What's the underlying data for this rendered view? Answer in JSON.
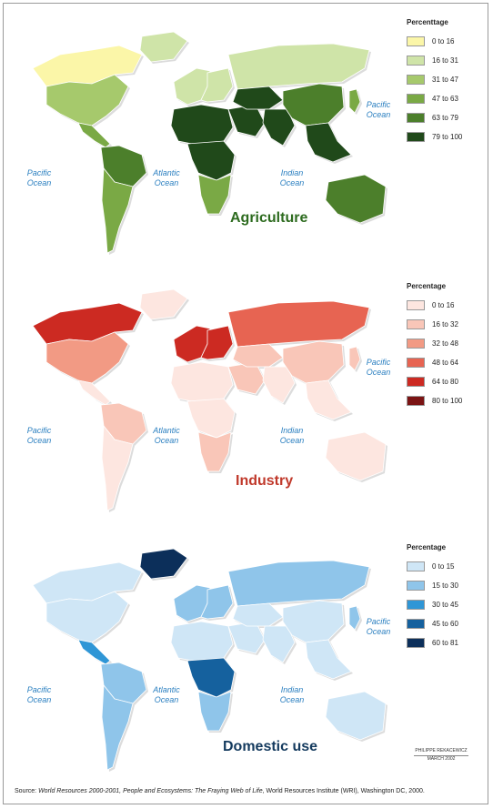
{
  "maps": [
    {
      "id": "agriculture",
      "title": "Agriculture",
      "title_color": "#2d6b1f",
      "legend_title": "Percenttage",
      "legend": [
        {
          "label": "0 to 16",
          "color": "#fbf6a8"
        },
        {
          "label": "16 to 31",
          "color": "#cfe4a8"
        },
        {
          "label": "31 to 47",
          "color": "#a6c96c"
        },
        {
          "label": "47 to 63",
          "color": "#7aa945"
        },
        {
          "label": "63 to 79",
          "color": "#4c7f2b"
        },
        {
          "label": "79 to 100",
          "color": "#20491a"
        }
      ],
      "regions": {
        "north_america_north": 0,
        "north_america_south": 2,
        "greenland": 1,
        "central_america": 3,
        "south_america_north": 4,
        "south_america_south": 3,
        "europe_west": 1,
        "europe_east": 1,
        "russia": 1,
        "north_africa": 5,
        "africa_central": 5,
        "africa_south": 3,
        "middle_east": 5,
        "central_asia": 5,
        "south_asia": 5,
        "china": 4,
        "southeast_asia": 5,
        "australia": 4,
        "japan": 3
      }
    },
    {
      "id": "industry",
      "title": "Industry",
      "title_color": "#c0392b",
      "legend_title": "Percentage",
      "legend": [
        {
          "label": "0 to 16",
          "color": "#fde6e0"
        },
        {
          "label": "16 to 32",
          "color": "#f9c6b8"
        },
        {
          "label": "32 to 48",
          "color": "#f29a84"
        },
        {
          "label": "48 to 64",
          "color": "#e76452"
        },
        {
          "label": "64 to 80",
          "color": "#cc2a22"
        },
        {
          "label": "80 to 100",
          "color": "#7b1414"
        }
      ],
      "regions": {
        "north_america_north": 4,
        "north_america_south": 2,
        "greenland": 0,
        "central_america": 0,
        "south_america_north": 1,
        "south_america_south": 0,
        "europe_west": 4,
        "europe_east": 4,
        "russia": 3,
        "north_africa": 0,
        "africa_central": 0,
        "africa_south": 1,
        "middle_east": 1,
        "central_asia": 1,
        "south_asia": 0,
        "china": 1,
        "southeast_asia": 0,
        "australia": 0,
        "japan": 1
      }
    },
    {
      "id": "domestic",
      "title": "Domestic use",
      "title_color": "#143a5e",
      "legend_title": "Percentage",
      "legend": [
        {
          "label": "0 to 15",
          "color": "#cfe6f6"
        },
        {
          "label": "15 to 30",
          "color": "#8fc5ea"
        },
        {
          "label": "30 to 45",
          "color": "#2f96d6"
        },
        {
          "label": "45 to 60",
          "color": "#15619e"
        },
        {
          "label": "60 to 81",
          "color": "#0c2f5a"
        }
      ],
      "regions": {
        "north_america_north": 0,
        "north_america_south": 0,
        "greenland": 4,
        "central_america": 2,
        "south_america_north": 1,
        "south_america_south": 1,
        "europe_west": 1,
        "europe_east": 1,
        "russia": 1,
        "north_africa": 0,
        "africa_central": 3,
        "africa_south": 1,
        "middle_east": 0,
        "central_asia": 0,
        "south_asia": 0,
        "china": 0,
        "southeast_asia": 0,
        "australia": 0,
        "japan": 1
      }
    }
  ],
  "ocean_labels": {
    "pacific_left": "Pacific\nOcean",
    "atlantic": "Atlantic\nOcean",
    "indian": "Indian\nOcean",
    "pacific_right": "Pacific\nOcean"
  },
  "credit": {
    "name": "PHILIPPE REKACEWICZ",
    "date": "MARCH 2002"
  },
  "source": {
    "prefix": "Source: ",
    "title": "World Resources 2000-2001, People and Ecosystems: The Fraying Web of Life",
    "suffix": ", World Resources Institute (WRI), Washington DC, 2000."
  }
}
